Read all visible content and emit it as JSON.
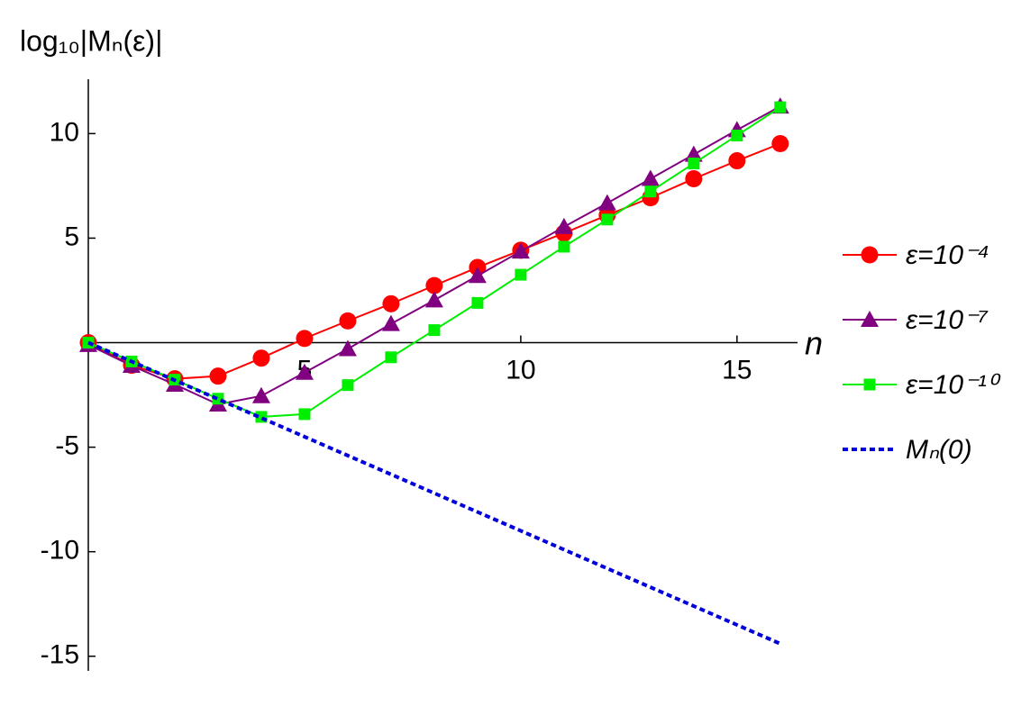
{
  "chart_data": {
    "type": "line",
    "y_label": "log₁₀|Mₙ(ε)|",
    "x_label": "n",
    "x": [
      0,
      1,
      2,
      3,
      4,
      5,
      6,
      7,
      8,
      9,
      10,
      11,
      12,
      13,
      14,
      15,
      16
    ],
    "series": [
      {
        "name": "ε=10⁻⁴",
        "color": "#ff0000",
        "marker": "circle",
        "line_style": "solid",
        "values": [
          0,
          -1.08,
          -1.73,
          -1.6,
          -0.74,
          0.2,
          1.04,
          1.86,
          2.73,
          3.6,
          4.42,
          5.24,
          6.1,
          6.93,
          7.84,
          8.7,
          9.52
        ]
      },
      {
        "name": "ε=10⁻⁷",
        "color": "#800080",
        "marker": "triangle",
        "line_style": "solid",
        "values": [
          -0.1,
          -1.1,
          -2.0,
          -2.95,
          -2.55,
          -1.43,
          -0.3,
          0.9,
          2.03,
          3.2,
          4.37,
          5.54,
          6.67,
          7.84,
          9.0,
          10.17,
          11.3
        ]
      },
      {
        "name": "ε=10⁻¹⁰",
        "color": "#00ee00",
        "marker": "square",
        "line_style": "solid",
        "values": [
          0,
          -0.9,
          -1.77,
          -2.68,
          -3.55,
          -3.42,
          -2.03,
          -0.7,
          0.6,
          1.9,
          3.25,
          4.59,
          5.89,
          7.23,
          8.57,
          9.91,
          11.26
        ]
      },
      {
        "name": "Mₙ(0)",
        "color": "#0000dd",
        "marker": "none",
        "line_style": "dashed",
        "values": [
          0,
          -0.9,
          -1.8,
          -2.7,
          -3.6,
          -4.5,
          -5.4,
          -6.3,
          -7.2,
          -8.1,
          -9,
          -9.9,
          -10.8,
          -11.7,
          -12.6,
          -13.5,
          -14.4
        ]
      }
    ],
    "xlim": [
      0,
      16.4
    ],
    "ylim": [
      -15.7,
      12.6
    ],
    "xticks": [
      5,
      10,
      15
    ],
    "yticks": [
      -15,
      -10,
      -5,
      5,
      10
    ],
    "legend": "right"
  }
}
